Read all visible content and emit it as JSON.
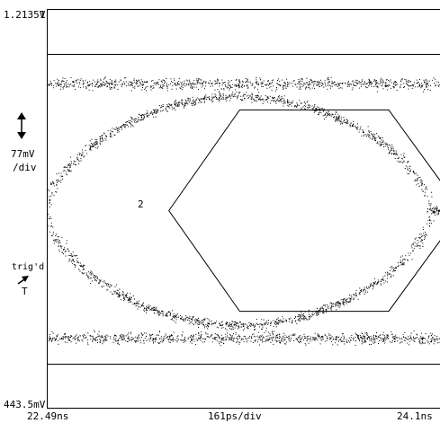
{
  "chart_data": {
    "type": "scatter",
    "subtype": "eye-diagram",
    "title": "",
    "y_top_label": "1.2135V",
    "y_bottom_label": "443.5mV",
    "channel_label": "1",
    "x_left_label": "22.49ns",
    "x_center_label": "161ps/div",
    "x_right_label": "24.1ns",
    "y_scale_label": "77mV",
    "y_scale_unit": "/div",
    "trigger_label": "trig'd",
    "trigger_marker": "T",
    "mask_label": "2",
    "x_range_ns": [
      22.49,
      24.1
    ],
    "y_range_mV": [
      443.5,
      1213.5
    ],
    "levels_mV": {
      "high": 1070,
      "low": 580,
      "crossing": 825
    },
    "eye_crossings_ns": [
      22.49,
      24.06
    ],
    "mask_hexagon_mV_ns": [
      [
        22.99,
        825
      ],
      [
        23.28,
        1019
      ],
      [
        23.89,
        1019
      ],
      [
        24.19,
        825
      ],
      [
        23.89,
        631
      ],
      [
        23.28,
        631
      ]
    ],
    "grid": false
  }
}
